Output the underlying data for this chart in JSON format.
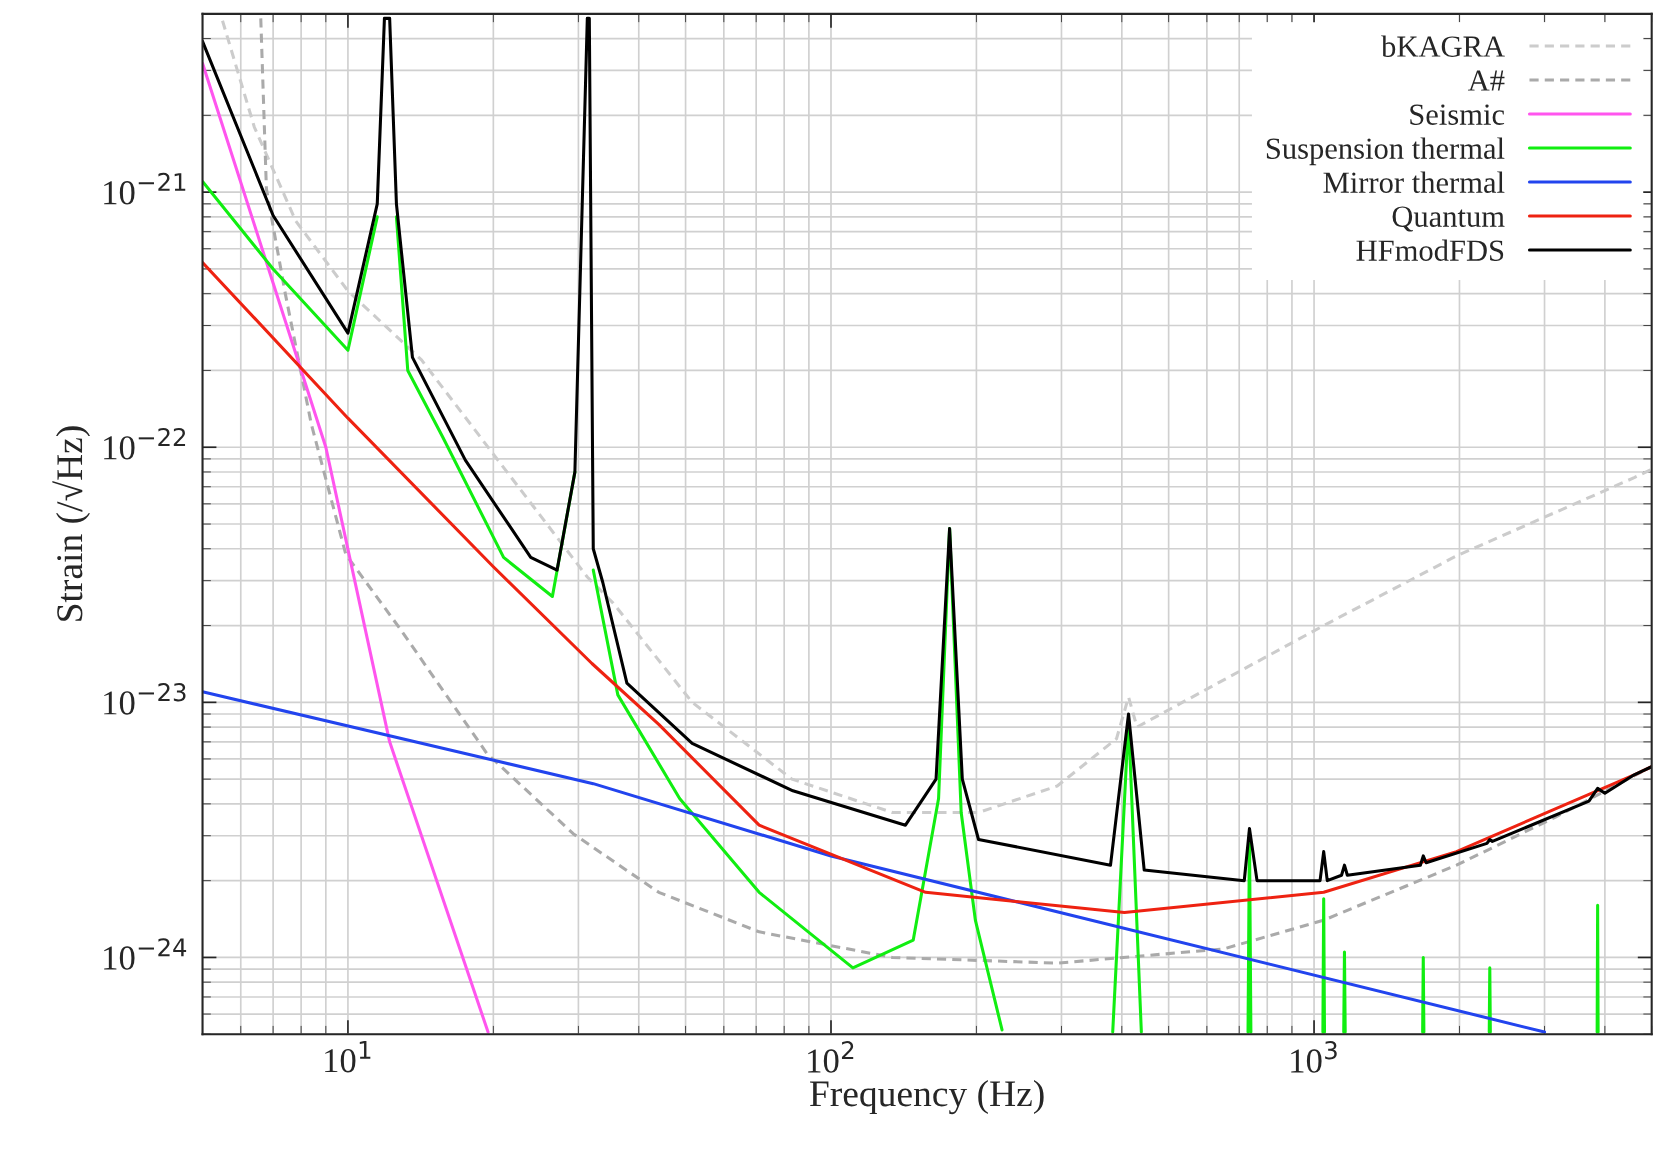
{
  "chart_data": {
    "type": "line",
    "xlabel": "Frequency (Hz)",
    "ylabel": "Strain (/√Hz)",
    "log": "xy",
    "grid": true,
    "legend": "top right",
    "xlim": [
      5,
      5000
    ],
    "xticks": [
      {
        "value": 10,
        "label": "10$^{1}$"
      },
      {
        "value": 100,
        "label": "10$^{2}$"
      },
      {
        "value": 1000,
        "label": "10$^{3}$"
      }
    ],
    "ylim": [
      5e-25,
      5e-21
    ],
    "yticks": [
      {
        "value": 1e-24,
        "label": "10$^{−24}$"
      },
      {
        "value": 1e-23,
        "label": "10$^{−23}$"
      },
      {
        "value": 1e-22,
        "label": "10$^{−22}$"
      },
      {
        "value": 1e-21,
        "label": "10$^{−21}$"
      }
    ],
    "series": [
      {
        "name": "bKAGRA",
        "color": "#cccccc",
        "line_style": "dashed",
        "x": [
          5.5,
          6.4,
          7.8,
          10,
          14.2,
          20,
          31.3,
          35.4,
          51.6,
          83,
          134,
          202,
          294,
          390,
          413,
          430,
          1047,
          1972,
          4600,
          5000
        ],
        "values": [
          4.7e-21,
          1.8e-21,
          7.7e-22,
          4.1e-22,
          2.2e-22,
          9.4e-23,
          3.1e-23,
          2.45e-23,
          1e-23,
          5e-24,
          3.7e-24,
          3.7e-24,
          4.7e-24,
          7.2e-24,
          1.05e-23,
          8e-24,
          2e-23,
          3.75e-23,
          7.6e-23,
          8.2e-23
        ]
      },
      {
        "name": "A#",
        "color": "#aaaaaa",
        "line_style": "dashed",
        "x": [
          6.6,
          6.78,
          7.4,
          8.4,
          9.9,
          12.8,
          19.4,
          29.3,
          44,
          71,
          134,
          294,
          650,
          1047,
          1972,
          3160,
          5000
        ],
        "values": [
          4.8e-21,
          1.03e-21,
          4.1e-22,
          1.23e-22,
          3.8e-23,
          1.95e-23,
          6.3e-24,
          3.05e-24,
          1.8e-24,
          1.26e-24,
          1e-24,
          9.5e-25,
          1.08e-24,
          1.4e-24,
          2.3e-24,
          3.55e-24,
          5.6e-24
        ]
      },
      {
        "name": "Seismic",
        "color": "#ff55ee",
        "line_style": "solid",
        "x": [
          5,
          9,
          12.2,
          19.5
        ],
        "values": [
          3.2e-21,
          1e-22,
          7e-24,
          5.1e-25
        ]
      },
      {
        "name": "Suspension thermal",
        "color": "#11ee11",
        "line_style": "solid",
        "x": [
          5,
          7,
          10,
          11.5,
          11.9,
          12.2,
          12.6,
          13.3,
          15.7,
          21,
          26.5,
          29.5,
          31.3,
          31.6,
          32.2,
          36.2,
          48.6,
          71,
          111,
          148,
          167,
          176,
          186,
          199,
          226,
          300,
          383,
          413,
          439,
          600,
          730,
          735,
          740,
          900,
          1043,
          1047,
          1051,
          1100,
          1152,
          1156,
          1160,
          1400,
          1678,
          1683,
          1688,
          2000,
          2305,
          2311,
          2317,
          3000,
          3855,
          3864,
          3873
        ],
        "values": [
          1.1e-21,
          5e-22,
          2.4e-22,
          8e-22,
          null,
          null,
          8e-22,
          2e-22,
          1.1e-22,
          3.7e-23,
          2.6e-23,
          8e-23,
          null,
          null,
          3.3e-23,
          1.07e-23,
          4.2e-24,
          1.8e-24,
          9.1e-25,
          1.17e-24,
          4.2e-24,
          4.8e-23,
          3.7e-24,
          1.4e-24,
          5.2e-25,
          null,
          5.1e-25,
          8.5e-24,
          5.1e-25,
          null,
          5.1e-25,
          3.1e-24,
          5.1e-25,
          null,
          5.1e-25,
          1.7e-24,
          5.1e-25,
          null,
          5.1e-25,
          1.05e-24,
          5.1e-25,
          null,
          5.1e-25,
          1e-24,
          5.1e-25,
          null,
          5.1e-25,
          9.1e-25,
          5.1e-25,
          null,
          5.1e-25,
          1.6e-24,
          5.1e-25
        ]
      },
      {
        "name": "Mirror thermal",
        "color": "#2244ee",
        "line_style": "solid",
        "x": [
          5,
          32.2,
          100,
          3000
        ],
        "values": [
          1.1e-23,
          4.8e-24,
          2.5e-24,
          5.1e-25
        ]
      },
      {
        "name": "Quantum",
        "color": "#ee2211",
        "line_style": "solid",
        "x": [
          5,
          10,
          20,
          32,
          44,
          71,
          157,
          405,
          1047,
          1972,
          4600,
          5000
        ],
        "values": [
          5.3e-22,
          1.3e-22,
          3.4e-23,
          1.42e-23,
          8.2e-24,
          3.3e-24,
          1.8e-24,
          1.5e-24,
          1.8e-24,
          2.6e-24,
          5.2e-24,
          5.6e-24
        ]
      },
      {
        "name": "HFmodFDS",
        "color": "#000000",
        "line_style": "solid",
        "x": [
          5,
          7,
          10,
          11.5,
          11.9,
          12.2,
          12.6,
          13.6,
          17.5,
          23.9,
          27.1,
          29.5,
          31.3,
          31.6,
          32.2,
          33.7,
          37.8,
          51.6,
          83.4,
          142.6,
          165,
          176,
          187,
          202,
          379,
          413,
          445,
          717,
          735,
          762,
          1029,
          1047,
          1065,
          1140,
          1156,
          1172,
          1660,
          1683,
          1706,
          2280,
          2311,
          2340,
          3707,
          3864,
          4000,
          4600,
          5000
        ],
        "values": [
          3.9e-21,
          8.1e-22,
          2.8e-22,
          9e-22,
          4.8e-21,
          4.8e-21,
          9e-22,
          2.25e-22,
          8.9e-23,
          3.7e-23,
          3.3e-23,
          8e-23,
          4.8e-21,
          4.8e-21,
          4e-23,
          2.95e-23,
          1.19e-23,
          6.9e-24,
          4.5e-24,
          3.3e-24,
          5e-24,
          4.8e-23,
          5e-24,
          2.9e-24,
          2.3e-24,
          9e-24,
          2.2e-24,
          2e-24,
          3.2e-24,
          2e-24,
          2e-24,
          2.6e-24,
          2e-24,
          2.1e-24,
          2.3e-24,
          2.1e-24,
          2.3e-24,
          2.5e-24,
          2.35e-24,
          2.8e-24,
          2.9e-24,
          2.85e-24,
          4.1e-24,
          4.6e-24,
          4.4e-24,
          5.2e-24,
          5.6e-24
        ]
      }
    ]
  }
}
